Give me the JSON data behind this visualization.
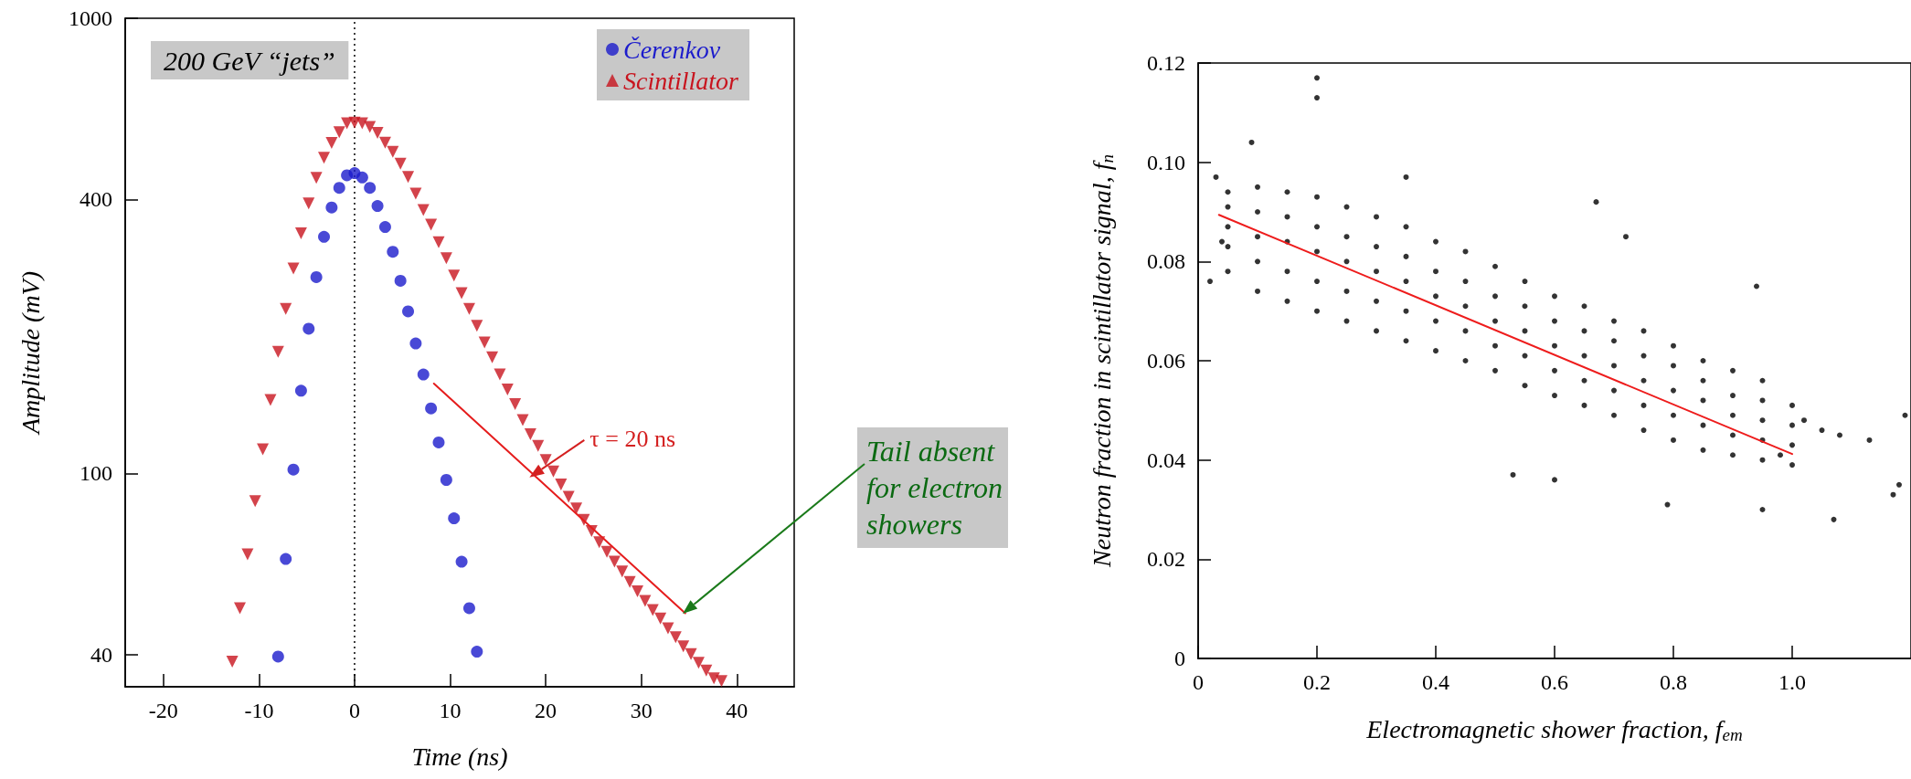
{
  "chart_data": [
    {
      "type": "scatter",
      "xlabel": "Time (ns)",
      "ylabel": "Amplitude (mV)",
      "log": "y",
      "xlim": [
        -24,
        46
      ],
      "xticks": [
        -20,
        -10,
        0,
        10,
        20,
        30,
        40
      ],
      "ylim": [
        34,
        1000
      ],
      "yticks": [
        40,
        100,
        400,
        1000
      ],
      "legend": "top right",
      "annotations": [
        "200 GeV “jets”",
        {
          "text": "τ = 20 ns",
          "x": 18.3,
          "y": 98
        },
        "Tail absent for electron showers"
      ],
      "ref_lines": [
        {
          "axis": "x",
          "value": 0,
          "line_style": "dotted",
          "color": "#000000"
        }
      ],
      "series": [
        {
          "name": "Čerenkov",
          "color": "#1c1ccc",
          "marker": "circle",
          "x": [
            -8,
            -7.2,
            -6.4,
            -5.6,
            -4.8,
            -4,
            -3.2,
            -2.4,
            -1.6,
            -0.8,
            0,
            0.8,
            1.6,
            2.4,
            3.2,
            4,
            4.8,
            5.6,
            6.4,
            7.2,
            8,
            8.8,
            9.6,
            10.4,
            11.2,
            12,
            12.8
          ],
          "values": [
            39.6,
            64.9,
            102,
            152,
            208,
            270,
            331,
            384,
            424,
            452,
            457,
            447,
            424,
            387,
            348,
            307,
            265,
            227,
            193,
            165,
            139,
            117,
            96.8,
            79.7,
            64.0,
            50.6,
            40.6
          ]
        },
        {
          "name": "Scintillator",
          "color": "#c8141e",
          "marker": "triangle",
          "x": [
            -12.8,
            -12,
            -11.2,
            -10.4,
            -9.6,
            -8.8,
            -8,
            -7.2,
            -6.4,
            -5.6,
            -4.8,
            -4,
            -3.2,
            -2.4,
            -1.6,
            -0.8,
            0,
            0.8,
            1.6,
            2.4,
            3.2,
            4,
            4.8,
            5.6,
            6.4,
            7.2,
            8,
            8.8,
            9.6,
            10.4,
            11.2,
            12,
            12.8,
            13.6,
            14.4,
            15.2,
            16,
            16.8,
            17.6,
            18.4,
            19.2,
            20,
            20.8,
            21.6,
            22.4,
            23.2,
            24,
            24.8,
            25.6,
            26.4,
            27.2,
            28,
            28.8,
            29.6,
            30.4,
            31.2,
            32,
            32.8,
            33.6,
            34.4,
            35.2,
            36,
            36.8,
            37.6,
            38.4
          ],
          "values": [
            38.6,
            50.6,
            66.4,
            86.9,
            113,
            145,
            185,
            230,
            282,
            337,
            392,
            446,
            494,
            532,
            562,
            588,
            590,
            588,
            577,
            560,
            533,
            509,
            479,
            448,
            412,
            379,
            352,
            322,
            297,
            272,
            249,
            230,
            211,
            194,
            180,
            165,
            153,
            142,
            131,
            122,
            115,
            107,
            101,
            94.6,
            88.9,
            83.8,
            79.1,
            74.7,
            70.6,
            67.3,
            64.0,
            60.9,
            57.8,
            55.1,
            52.5,
            50.1,
            48.0,
            45.7,
            43.7,
            41.7,
            40.1,
            38.4,
            36.9,
            35.5,
            35.0
          ]
        },
        {
          "type": "line",
          "color": "#e51c1c",
          "marker": "none",
          "x": [
            8.3,
            34.6
          ],
          "values": [
            157.6,
            49.3
          ]
        }
      ]
    },
    {
      "type": "scatter",
      "xlabel": "Electromagnetic shower fraction, f$_{em}$",
      "ylabel": "Neutron fraction in scintillator signal, f$_{n}$",
      "xlim": [
        0,
        1.2
      ],
      "xticks": [
        0,
        0.2,
        0.4,
        0.6,
        0.8,
        {
          "value": 1,
          "label": "1.0"
        }
      ],
      "ylim": [
        0,
        0.12
      ],
      "yticks": [
        0,
        0.02,
        0.04,
        0.06,
        0.08,
        {
          "value": 0.1,
          "label": "0.10"
        },
        0.12
      ],
      "series": [
        {
          "color": "#000000",
          "marker": "circle",
          "x": [
            0.2,
            0.2,
            0.09,
            0.35,
            0.67,
            0.72,
            0.94,
            0.53,
            0.6,
            0.79,
            0.95,
            1.07,
            1.19,
            1.18,
            1.17,
            1.08,
            1.13,
            1.05,
            1.02,
            0.98,
            0.03,
            0.04,
            0.02,
            0.05,
            0.05,
            0.05,
            0.05,
            0.05,
            0.1,
            0.1,
            0.1,
            0.1,
            0.1,
            0.15,
            0.15,
            0.15,
            0.15,
            0.15,
            0.2,
            0.2,
            0.2,
            0.2,
            0.2,
            0.25,
            0.25,
            0.25,
            0.25,
            0.25,
            0.3,
            0.3,
            0.3,
            0.3,
            0.3,
            0.35,
            0.35,
            0.35,
            0.35,
            0.35,
            0.4,
            0.4,
            0.4,
            0.4,
            0.4,
            0.45,
            0.45,
            0.45,
            0.45,
            0.45,
            0.5,
            0.5,
            0.5,
            0.5,
            0.5,
            0.55,
            0.55,
            0.55,
            0.55,
            0.55,
            0.6,
            0.6,
            0.6,
            0.6,
            0.6,
            0.65,
            0.65,
            0.65,
            0.65,
            0.65,
            0.7,
            0.7,
            0.7,
            0.7,
            0.7,
            0.75,
            0.75,
            0.75,
            0.75,
            0.75,
            0.8,
            0.8,
            0.8,
            0.8,
            0.8,
            0.85,
            0.85,
            0.85,
            0.85,
            0.85,
            0.9,
            0.9,
            0.9,
            0.9,
            0.9,
            0.95,
            0.95,
            0.95,
            0.95,
            0.95,
            1,
            1,
            1,
            1
          ],
          "values": [
            0.117,
            0.113,
            0.104,
            0.097,
            0.092,
            0.085,
            0.075,
            0.037,
            0.036,
            0.031,
            0.03,
            0.028,
            0.049,
            0.035,
            0.033,
            0.045,
            0.044,
            0.046,
            0.048,
            0.041,
            0.097,
            0.084,
            0.076,
            0.078,
            0.083,
            0.087,
            0.091,
            0.094,
            0.074,
            0.08,
            0.085,
            0.09,
            0.095,
            0.072,
            0.078,
            0.084,
            0.089,
            0.094,
            0.07,
            0.076,
            0.082,
            0.087,
            0.093,
            0.068,
            0.074,
            0.08,
            0.085,
            0.091,
            0.066,
            0.072,
            0.078,
            0.083,
            0.089,
            0.064,
            0.07,
            0.076,
            0.081,
            0.087,
            0.062,
            0.068,
            0.073,
            0.078,
            0.084,
            0.06,
            0.066,
            0.071,
            0.076,
            0.082,
            0.058,
            0.063,
            0.068,
            0.073,
            0.079,
            0.055,
            0.061,
            0.066,
            0.071,
            0.076,
            0.053,
            0.058,
            0.063,
            0.068,
            0.073,
            0.051,
            0.056,
            0.061,
            0.066,
            0.071,
            0.049,
            0.054,
            0.059,
            0.064,
            0.068,
            0.046,
            0.051,
            0.056,
            0.061,
            0.066,
            0.044,
            0.049,
            0.054,
            0.059,
            0.063,
            0.042,
            0.047,
            0.052,
            0.056,
            0.06,
            0.041,
            0.045,
            0.049,
            0.053,
            0.058,
            0.04,
            0.044,
            0.048,
            0.052,
            0.056,
            0.039,
            0.043,
            0.047,
            0.051
          ]
        },
        {
          "type": "line",
          "color": "#ee1c1c",
          "marker": "none",
          "x": [
            0.035,
            1.0
          ],
          "values": [
            0.0894,
            0.0412
          ]
        }
      ]
    }
  ]
}
